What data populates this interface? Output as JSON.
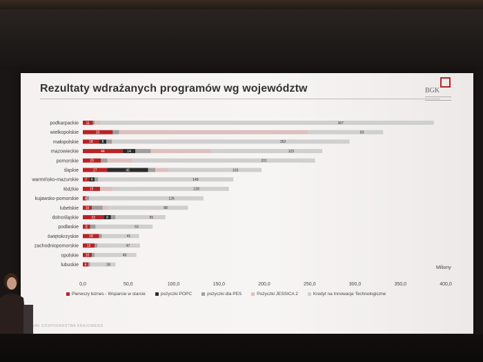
{
  "slide": {
    "title": "Rezultaty wdrażanych programów wg województw",
    "logo_text": "BGK",
    "footer_text": "BANK GOSPODARSTWA KRAJOWEGO",
    "unit_label": "Miliony"
  },
  "colors": {
    "pierwszy_biznes": "#b62426",
    "pozyczki_popc": "#2b2b2b",
    "pozyczki_pes": "#9e9e9e",
    "jessica": "#dcc0bf",
    "kredyt_innowacje": "#cfcfcf"
  },
  "chart_data": {
    "type": "bar",
    "orientation": "horizontal",
    "stacked": true,
    "categories": [
      "podkarpackie",
      "wielkopolskie",
      "małopolskie",
      "mazowieckie",
      "pomorskie",
      "śląskie",
      "warmińsko-mazurskie",
      "łódzkie",
      "kujawsko-pomorskie",
      "lubelskie",
      "dolnośląskie",
      "podlaskie",
      "świętokrzyskie",
      "zachodniopomorskie",
      "opolskie",
      "lubuskie"
    ],
    "series": [
      {
        "name": "Pierwszy biznes - Wsparcie w starcie",
        "color": "#b62426",
        "values": [
          11,
          33,
          18,
          44,
          20,
          27,
          7,
          19,
          4,
          10,
          23,
          8,
          18,
          13,
          10,
          6
        ]
      },
      {
        "name": "pożyczki POPC",
        "color": "#2b2b2b",
        "values": [
          0,
          0,
          8,
          14,
          0,
          45,
          6,
          0,
          0,
          0,
          8,
          0,
          0,
          0,
          0,
          0
        ]
      },
      {
        "name": "pożyczki dla PES",
        "color": "#9e9e9e",
        "values": [
          2,
          7,
          6,
          17,
          7,
          8,
          4,
          0,
          3,
          12,
          5,
          6,
          3,
          3,
          3,
          2
        ]
      },
      {
        "name": "Pożyczki JESSICA 2",
        "color": "#dcc0bf",
        "values": [
          7,
          208,
          0,
          66,
          28,
          14,
          0,
          14,
          0,
          6,
          0,
          0,
          0,
          0,
          0,
          0
        ]
      },
      {
        "name": "Kredyt na Innowacje Technologiczne",
        "color": "#cfcfcf",
        "values": [
          367,
          83,
          262,
          123,
          201,
          103,
          149,
          128,
          126,
          88,
          55,
          63,
          41,
          47,
          46,
          28
        ]
      }
    ],
    "data_labels": [
      [
        "11",
        "2",
        "7",
        "367"
      ],
      [
        "33",
        "7",
        "208",
        "83"
      ],
      [
        "18",
        "8",
        "6",
        "262"
      ],
      [
        "44",
        "14",
        "17",
        "66",
        "123"
      ],
      [
        "20",
        "7",
        "28",
        "201"
      ],
      [
        "27",
        "45",
        "8",
        "14",
        "103"
      ],
      [
        "7",
        "6",
        "4",
        "149"
      ],
      [
        "19",
        "14",
        "128"
      ],
      [
        "4",
        "3",
        "126"
      ],
      [
        "10",
        "12",
        "6",
        "88"
      ],
      [
        "23",
        "8",
        "5",
        "55"
      ],
      [
        "8",
        "6",
        "63"
      ],
      [
        "18",
        "3",
        "41"
      ],
      [
        "13",
        "3",
        "47"
      ],
      [
        "10",
        "3",
        "46"
      ],
      [
        "6",
        "2",
        "28"
      ]
    ],
    "x_ticks": [
      "0,0",
      "50,0",
      "100,0",
      "150,0",
      "200,0",
      "250,0",
      "300,0",
      "350,0",
      "400,0"
    ],
    "xlim": [
      0,
      400
    ],
    "legend_position": "bottom",
    "grid": false
  }
}
